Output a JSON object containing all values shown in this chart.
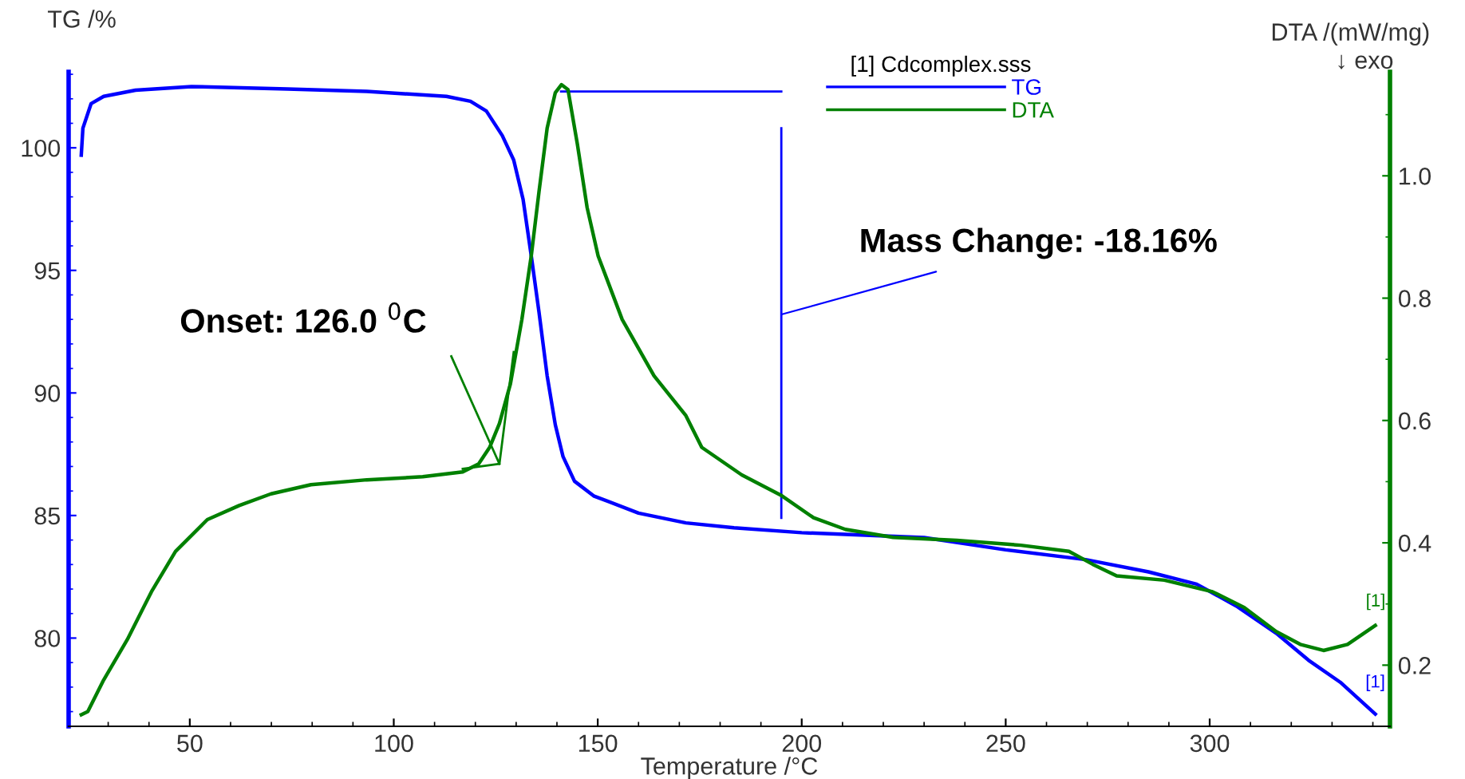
{
  "chart_data": {
    "type": "line",
    "xlabel": "Temperature /°C",
    "ylabel": "TG /%",
    "y2label": "DTA /(mW/mg)",
    "legend_title": "[1] Cdcomplex.sss",
    "legend": "top",
    "grid": false,
    "line_style": "solid",
    "xlim": [
      20.3,
      344.2
    ],
    "xticks": [
      50,
      100,
      150,
      200,
      250,
      300
    ],
    "ylim": [
      76.4,
      103.1
    ],
    "yticks": [
      80,
      85,
      90,
      95,
      100
    ],
    "y2lim": [
      0.1,
      1.17
    ],
    "y2ticks": [
      {
        "value": 0.2,
        "label": "0.2"
      },
      {
        "value": 0.4,
        "label": "0.4"
      },
      {
        "value": 0.6,
        "label": "0.6"
      },
      {
        "value": 0.8,
        "label": "0.8"
      },
      {
        "value": 1.0,
        "label": "1.0"
      }
    ],
    "series": [
      {
        "name": "TG",
        "color": "#0000ff",
        "x": [
          23.4,
          23.8,
          25.8,
          28.9,
          36.7,
          50.4,
          73.9,
          93.4,
          112.9,
          118.8,
          122.7,
          126.6,
          129.4,
          131.7,
          133.7,
          135.6,
          137.6,
          139.6,
          141.5,
          144.3,
          149,
          160,
          171.6,
          183.4,
          200,
          230,
          250,
          269.6,
          285,
          296.8,
          306.6,
          316.3,
          324.2,
          332,
          340.6
        ],
        "values": [
          99.7,
          100.8,
          101.8,
          102.1,
          102.35,
          102.5,
          102.4,
          102.3,
          102.1,
          101.9,
          101.5,
          100.5,
          99.5,
          97.9,
          95.6,
          93.3,
          90.7,
          88.7,
          87.4,
          86.4,
          85.8,
          85.1,
          84.7,
          84.5,
          84.3,
          84.1,
          83.6,
          83.2,
          82.7,
          82.2,
          81.3,
          80.2,
          79.1,
          78.2,
          76.9
        ]
      },
      {
        "name": "DTA",
        "color": "#008000",
        "axis": "y2",
        "x": [
          23.4,
          25,
          28.9,
          34.7,
          40.6,
          46.5,
          54.3,
          62.1,
          69.9,
          79.7,
          93.4,
          107.1,
          116.9,
          120.8,
          123.5,
          125.9,
          128.6,
          131.4,
          133.7,
          135.6,
          137.6,
          139.6,
          141.1,
          142.7,
          145,
          147.4,
          150.1,
          156,
          163.8,
          171.6,
          175.5,
          185.3,
          195.1,
          202.9,
          210.7,
          222.4,
          238,
          253.7,
          265.5,
          271.3,
          277.2,
          288.9,
          300.7,
          308.5,
          316.3,
          322.2,
          327.9,
          333.8,
          340.6
        ],
        "values": [
          0.119,
          0.124,
          0.176,
          0.242,
          0.32,
          0.386,
          0.438,
          0.461,
          0.48,
          0.495,
          0.503,
          0.508,
          0.516,
          0.529,
          0.556,
          0.595,
          0.66,
          0.765,
          0.869,
          0.974,
          1.078,
          1.136,
          1.149,
          1.141,
          1.052,
          0.948,
          0.869,
          0.765,
          0.673,
          0.608,
          0.556,
          0.511,
          0.477,
          0.441,
          0.422,
          0.409,
          0.404,
          0.396,
          0.386,
          0.365,
          0.346,
          0.339,
          0.32,
          0.294,
          0.255,
          0.234,
          0.224,
          0.234,
          0.265
        ]
      },
      {
        "color": "#0000ff",
        "x": [
          141,
          195
        ],
        "values": [
          102.3,
          102.3
        ]
      },
      {
        "color": "#0000ff",
        "x": [
          195,
          195
        ],
        "values": [
          100.8,
          84.9
        ]
      },
      {
        "color": "#008000",
        "axis": "y2",
        "x": [
          116.9,
          125.9,
          129.4
        ],
        "values": [
          0.521,
          0.529,
          0.712
        ]
      },
      {
        "color": "#008000",
        "axis": "y2",
        "x": [
          114.1,
          125.9
        ],
        "values": [
          0.705,
          0.529
        ]
      }
    ],
    "annotations": [
      "Onset: 126.0 $^{0}$C",
      {
        "text": "Mass Change: -18.16%",
        "x": 195,
        "y": 93.2
      },
      {
        "text": "[1]",
        "x": 340.6,
        "y": 76.9
      },
      "[1]",
      "↓ exo"
    ]
  }
}
